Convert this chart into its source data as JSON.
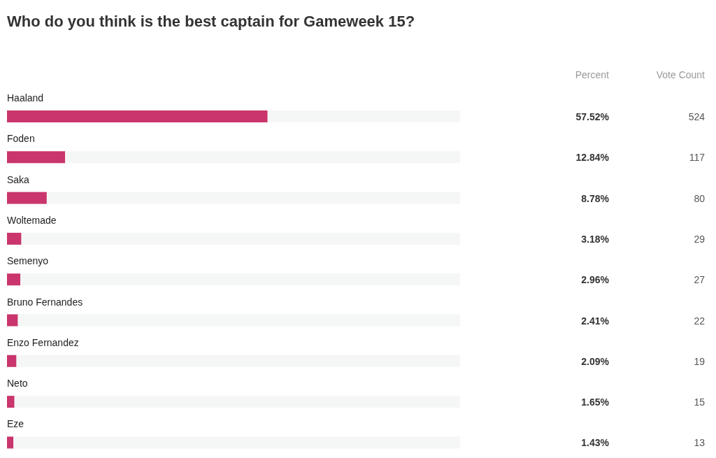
{
  "chart_data": {
    "type": "bar",
    "orientation": "horizontal",
    "stacked": true,
    "title": "Who do you think is the best captain for Gameweek 15?",
    "categories": [
      "Haaland",
      "Foden",
      "Saka",
      "Woltemade",
      "Semenyo",
      "Bruno Fernandes",
      "Enzo Fernandez",
      "Neto",
      "Eze"
    ],
    "xlim": [
      0,
      100
    ],
    "series": [
      {
        "name": "Percent",
        "color": "#c9356c",
        "values": [
          57.52,
          12.84,
          8.78,
          3.18,
          2.96,
          2.41,
          2.09,
          1.65,
          1.43
        ],
        "value_labels": [
          "57.52%",
          "12.84%",
          "8.78%",
          "3.18%",
          "2.96%",
          "2.41%",
          "2.09%",
          "1.65%",
          "1.43%"
        ]
      },
      {
        "color": "#f5f6f6",
        "values": [
          42.48,
          87.16,
          91.22,
          96.82,
          97.04,
          97.59,
          97.91,
          98.35,
          98.57
        ]
      }
    ],
    "annotations": [
      "Vote Count",
      "524",
      "117",
      "80",
      "29",
      "27",
      "22",
      "19",
      "15",
      "13"
    ]
  }
}
